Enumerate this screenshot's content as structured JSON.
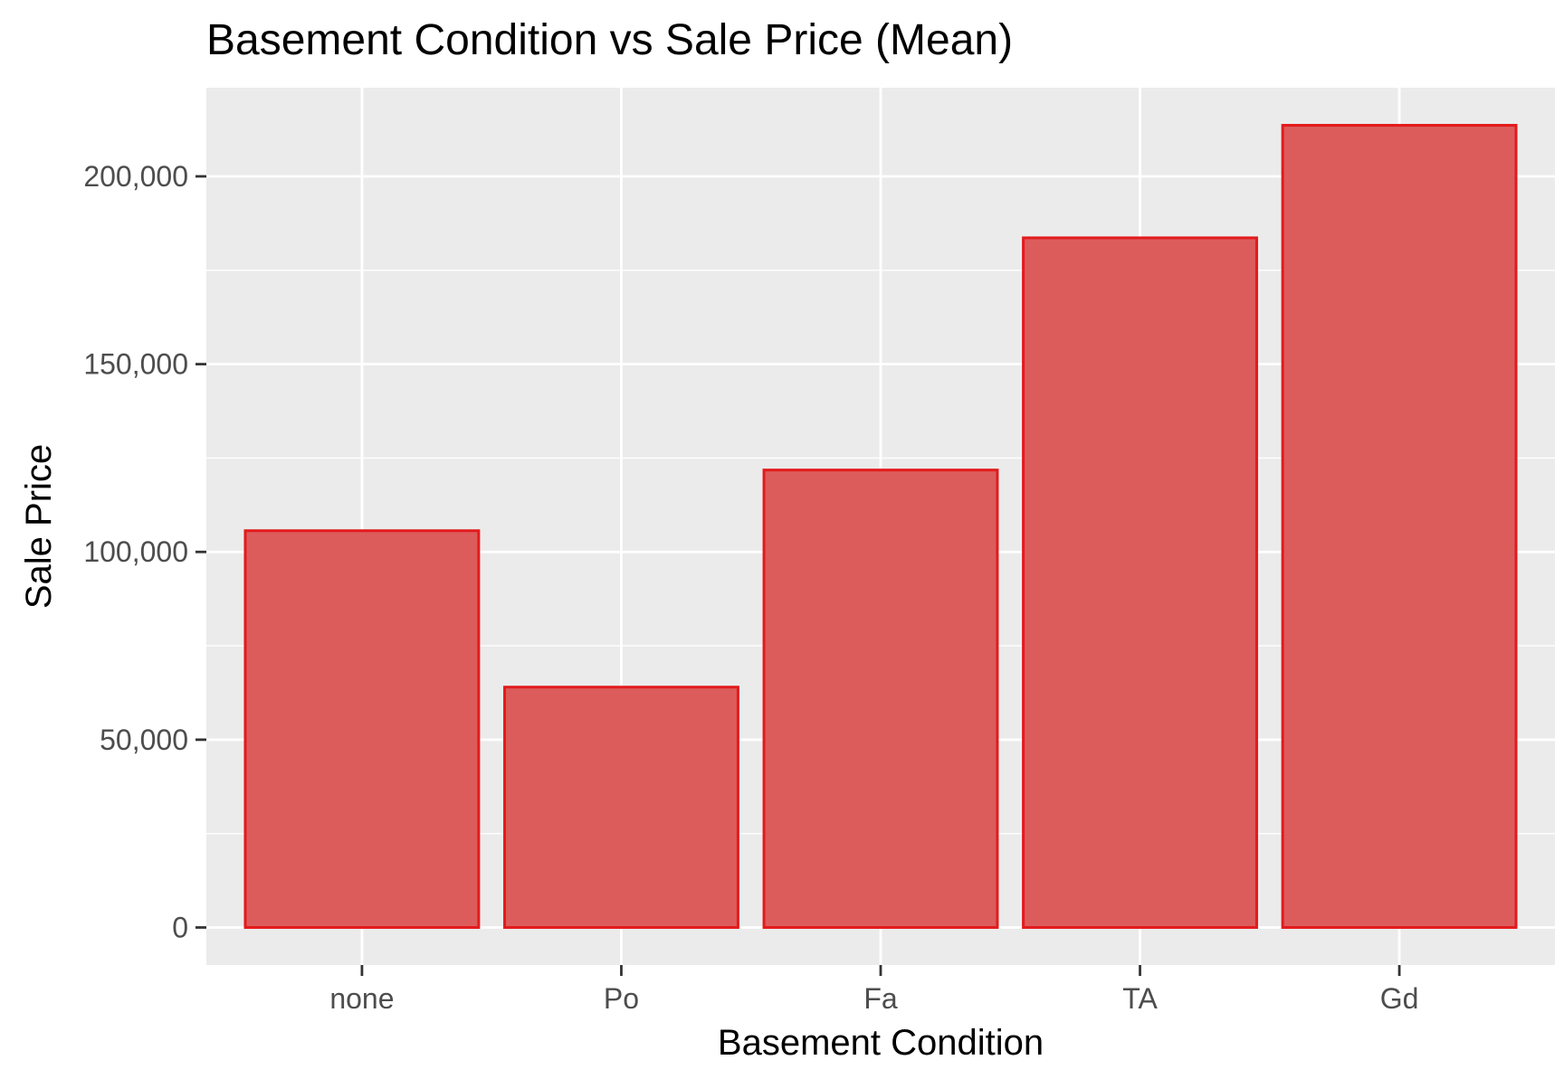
{
  "chart_data": {
    "type": "bar",
    "title": "Basement Condition vs Sale Price (Mean)",
    "xlabel": "Basement Condition",
    "ylabel": "Sale Price",
    "categories": [
      "none",
      "Po",
      "Fa",
      "TA",
      "Gd"
    ],
    "values": [
      105652,
      64000,
      121810,
      183633,
      213600
    ],
    "ylim": [
      -10000,
      223600
    ],
    "yticks": [
      0,
      50000,
      100000,
      150000,
      200000
    ],
    "ytick_labels": [
      "0",
      "50,000",
      "100,000",
      "150,000",
      "200,000"
    ],
    "grid": true,
    "legend": "none",
    "colors": {
      "bar_fill": "#dc5c5c",
      "bar_stroke": "#e31a1c",
      "panel_bg": "#ebebeb",
      "grid": "#ffffff",
      "tick_text": "#4d4d4d"
    }
  }
}
